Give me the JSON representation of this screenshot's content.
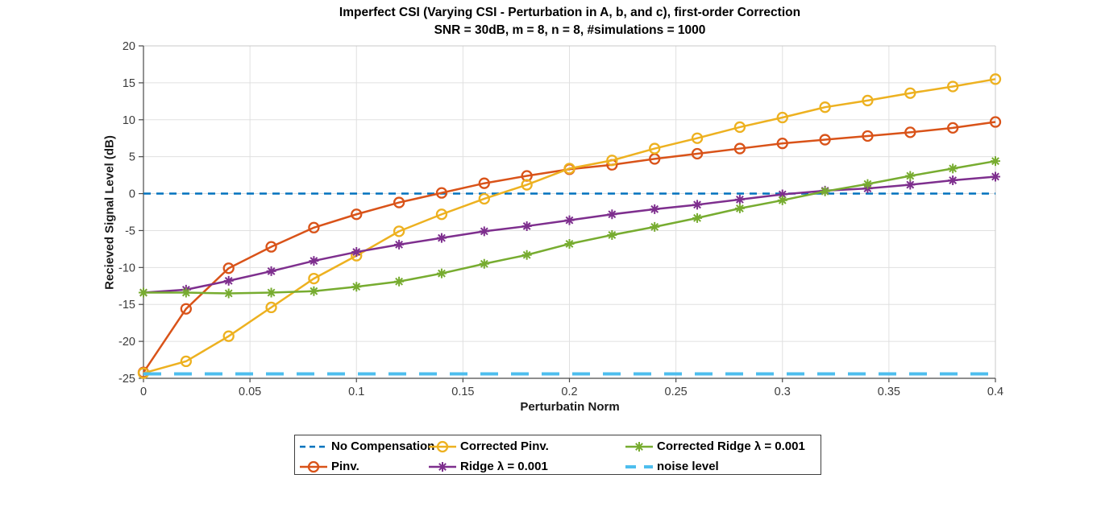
{
  "chart_data": {
    "type": "line",
    "title": "Imperfect CSI (Varying CSI - Perturbation in A, b, and c), first-order Correction",
    "subtitle": "SNR = 30dB, m = 8, n = 8, #simulations = 1000",
    "xlabel": "Perturbatin Norm",
    "ylabel": "Recieved Signal Level (dB)",
    "xlim": [
      0,
      0.4
    ],
    "ylim": [
      -25,
      20
    ],
    "grid": true,
    "legend_position": "below-chart",
    "x_ticks": {
      "values": [
        0,
        0.05,
        0.1,
        0.15,
        0.2,
        0.25,
        0.3,
        0.35,
        0.4
      ],
      "labels": [
        "0",
        "0.05",
        "0.1",
        "0.15",
        "0.2",
        "0.25",
        "0.3",
        "0.35",
        "0.4"
      ]
    },
    "y_ticks": {
      "values": [
        -25,
        -20,
        -15,
        -10,
        -5,
        0,
        5,
        10,
        15,
        20
      ],
      "labels": [
        "-25",
        "-20",
        "-15",
        "-10",
        "-5",
        "0",
        "5",
        "10",
        "15",
        "20"
      ]
    },
    "x": [
      0,
      0.02,
      0.04,
      0.06,
      0.08,
      0.1,
      0.12,
      0.14,
      0.16,
      0.18,
      0.2,
      0.22,
      0.24,
      0.26,
      0.28,
      0.3,
      0.32,
      0.34,
      0.36,
      0.38,
      0.4
    ],
    "series": [
      {
        "key": "no_compensation",
        "name": "No Compensation",
        "color": "#0072BD",
        "line": "dashed",
        "marker": "none",
        "constant": 0
      },
      {
        "key": "pinv",
        "name": "Pinv.",
        "color": "#D95319",
        "line": "solid",
        "marker": "circle",
        "values": [
          -24.2,
          -15.6,
          -10.1,
          -7.2,
          -4.6,
          -2.8,
          -1.2,
          0.1,
          1.4,
          2.4,
          3.3,
          3.9,
          4.7,
          5.4,
          6.1,
          6.8,
          7.3,
          7.8,
          8.3,
          8.9,
          9.7
        ]
      },
      {
        "key": "corrected_pinv",
        "name": "Corrected Pinv.",
        "color": "#EDB120",
        "line": "solid",
        "marker": "circle",
        "values": [
          -24.3,
          -22.7,
          -19.3,
          -15.4,
          -11.5,
          -8.4,
          -5.1,
          -2.8,
          -0.7,
          1.2,
          3.4,
          4.5,
          6.1,
          7.5,
          9.0,
          10.3,
          11.7,
          12.6,
          13.6,
          14.5,
          15.5
        ]
      },
      {
        "key": "ridge",
        "name": "Ridge λ = 0.001",
        "color": "#7E2F8E",
        "line": "solid",
        "marker": "asterisk",
        "values": [
          -13.4,
          -13.0,
          -11.8,
          -10.5,
          -9.1,
          -7.9,
          -6.9,
          -6.0,
          -5.1,
          -4.4,
          -3.6,
          -2.8,
          -2.1,
          -1.5,
          -0.8,
          -0.1,
          0.4,
          0.7,
          1.2,
          1.8,
          2.3
        ]
      },
      {
        "key": "corrected_ridge",
        "name": "Corrected Ridge λ = 0.001",
        "color": "#77AC30",
        "line": "solid",
        "marker": "asterisk",
        "values": [
          -13.4,
          -13.4,
          -13.5,
          -13.4,
          -13.2,
          -12.6,
          -11.9,
          -10.8,
          -9.5,
          -8.3,
          -6.8,
          -5.6,
          -4.5,
          -3.3,
          -2.0,
          -0.9,
          0.3,
          1.3,
          2.4,
          3.4,
          4.4
        ]
      },
      {
        "key": "noise_level",
        "name": "noise level",
        "color": "#4DBEEE",
        "line": "dashed-thick",
        "marker": "none",
        "constant": -24.4
      }
    ]
  },
  "legend": {
    "rows": [
      [
        "no_compensation",
        "corrected_pinv",
        "corrected_ridge"
      ],
      [
        "pinv",
        "ridge",
        "noise_level"
      ]
    ]
  },
  "style": {
    "axis_color": "#4a4a4a",
    "box_light_color": "#c9c9c9",
    "grid_color": "#e0e0e0",
    "tick_label_color": "#3b3b3b"
  }
}
